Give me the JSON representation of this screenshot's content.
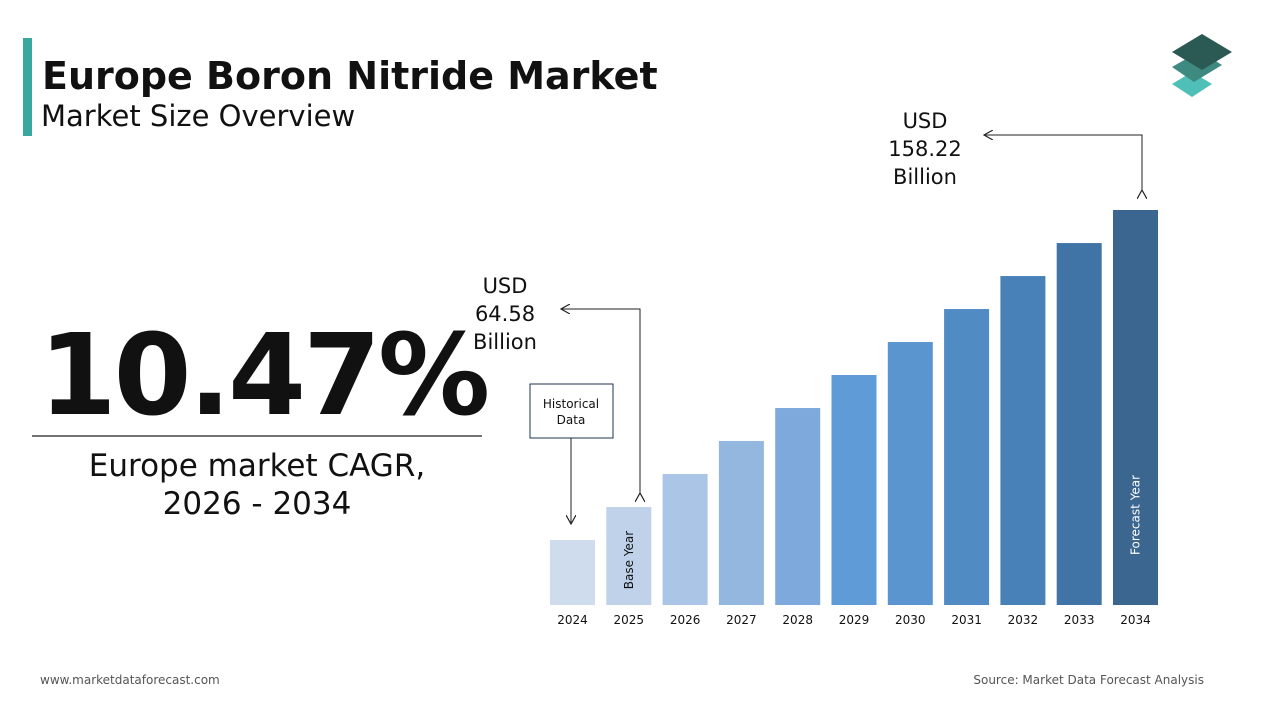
{
  "header": {
    "title": "Europe Boron Nitride Market",
    "subtitle": "Market Size Overview"
  },
  "cagr": {
    "value": "10.47%",
    "label_lines": [
      "Europe market CAGR,",
      "2026 - 2034"
    ]
  },
  "chart_data": {
    "type": "bar",
    "categories": [
      "2024",
      "2025",
      "2026",
      "2027",
      "2028",
      "2029",
      "2030",
      "2031",
      "2032",
      "2033",
      "2034"
    ],
    "values": [
      54.19,
      64.58,
      75.0,
      85.4,
      95.8,
      106.2,
      116.6,
      127.0,
      137.4,
      147.8,
      158.22
    ],
    "colors": [
      "#cfdcee",
      "#bfd2ea",
      "#abc5e6",
      "#94b7df",
      "#7ea9dc",
      "#5f9bd6",
      "#5a95cf",
      "#508bc4",
      "#4880b8",
      "#4174a6",
      "#3a6690"
    ],
    "ylim": [
      33.7,
      158.22
    ],
    "annotations": [
      {
        "lines": [
          "USD",
          "64.58",
          "Billion"
        ],
        "category": 1
      },
      {
        "lines": [
          "USD",
          "158.22",
          "Billion"
        ],
        "category": 10
      }
    ],
    "historical_label_lines": [
      "Historical",
      "Data"
    ],
    "base_year_label": "Base Year",
    "forecast_year_label": "Forecast Year"
  },
  "footer": {
    "website": "www.marketdataforecast.com",
    "source": "Source: Market Data Forecast Analysis"
  }
}
